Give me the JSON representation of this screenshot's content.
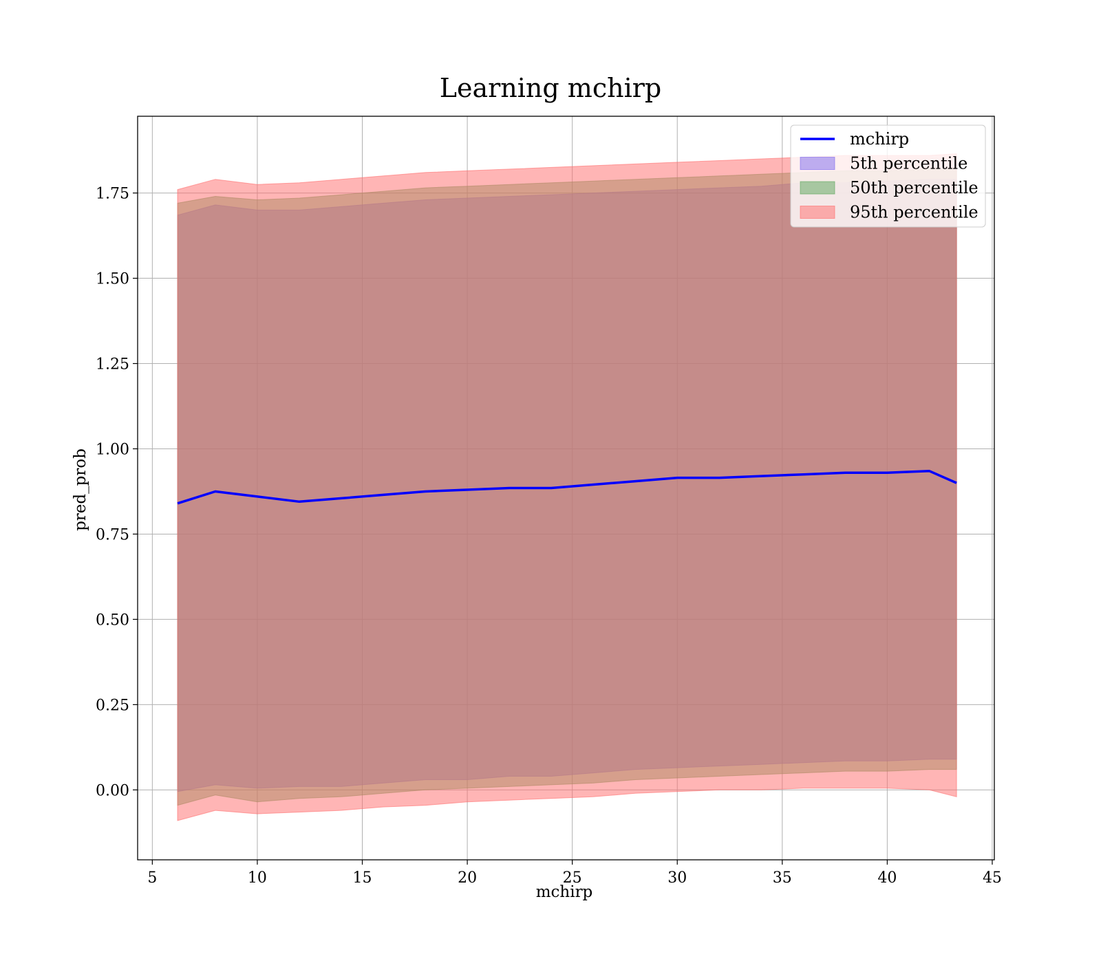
{
  "chart_data": {
    "type": "area",
    "title": "Learning mchirp",
    "xlabel": "mchirp",
    "ylabel": "pred_prob",
    "xlim": [
      4.3,
      45.1
    ],
    "ylim": [
      -0.205,
      1.975
    ],
    "grid": true,
    "legend_position": "top-right",
    "x_ticks": [
      5,
      10,
      15,
      20,
      25,
      30,
      35,
      40,
      45
    ],
    "x_tick_labels": [
      "5",
      "10",
      "15",
      "20",
      "25",
      "30",
      "35",
      "40",
      "45"
    ],
    "y_ticks": [
      0.0,
      0.25,
      0.5,
      0.75,
      1.0,
      1.25,
      1.5,
      1.75
    ],
    "y_tick_labels": [
      "0.00",
      "0.25",
      "0.50",
      "0.75",
      "1.00",
      "1.25",
      "1.50",
      "1.75"
    ],
    "x": [
      6.2,
      8.0,
      10.0,
      12.0,
      14.0,
      16.0,
      18.0,
      20.0,
      22.0,
      24.0,
      26.0,
      28.0,
      30.0,
      32.0,
      34.0,
      36.0,
      38.0,
      40.0,
      42.0,
      43.3
    ],
    "series": [
      {
        "name": "mchirp",
        "kind": "line",
        "color": "#0000ff",
        "values": [
          0.84,
          0.875,
          0.86,
          0.845,
          0.855,
          0.865,
          0.875,
          0.88,
          0.885,
          0.885,
          0.895,
          0.905,
          0.915,
          0.915,
          0.92,
          0.925,
          0.93,
          0.93,
          0.935,
          0.9
        ]
      },
      {
        "name": "5th percentile",
        "kind": "band",
        "color": "#7b68ee",
        "lower": [
          -0.005,
          0.015,
          0.005,
          0.01,
          0.01,
          0.02,
          0.03,
          0.03,
          0.04,
          0.04,
          0.05,
          0.06,
          0.065,
          0.07,
          0.075,
          0.08,
          0.085,
          0.085,
          0.09,
          0.09
        ],
        "upper": [
          1.685,
          1.715,
          1.7,
          1.7,
          1.71,
          1.72,
          1.73,
          1.735,
          1.74,
          1.745,
          1.75,
          1.755,
          1.76,
          1.765,
          1.77,
          1.78,
          1.78,
          1.785,
          1.79,
          1.79
        ]
      },
      {
        "name": "50th percentile",
        "kind": "band",
        "color": "#5aa55a",
        "lower": [
          -0.045,
          -0.015,
          -0.035,
          -0.025,
          -0.02,
          -0.01,
          0.0,
          0.005,
          0.01,
          0.015,
          0.02,
          0.03,
          0.035,
          0.04,
          0.045,
          0.05,
          0.055,
          0.055,
          0.06,
          0.06
        ],
        "upper": [
          1.72,
          1.74,
          1.73,
          1.735,
          1.745,
          1.755,
          1.765,
          1.77,
          1.775,
          1.78,
          1.785,
          1.79,
          1.795,
          1.8,
          1.805,
          1.81,
          1.815,
          1.815,
          1.82,
          1.82
        ]
      },
      {
        "name": "95th percentile",
        "kind": "band",
        "color": "#ff6b6b",
        "lower": [
          -0.09,
          -0.06,
          -0.07,
          -0.065,
          -0.06,
          -0.05,
          -0.045,
          -0.035,
          -0.03,
          -0.025,
          -0.02,
          -0.01,
          -0.005,
          0.0,
          0.0,
          0.005,
          0.005,
          0.005,
          0.0,
          -0.02
        ],
        "upper": [
          1.76,
          1.79,
          1.775,
          1.78,
          1.79,
          1.8,
          1.81,
          1.815,
          1.82,
          1.825,
          1.83,
          1.835,
          1.84,
          1.845,
          1.85,
          1.855,
          1.86,
          1.86,
          1.86,
          1.865
        ]
      }
    ]
  }
}
